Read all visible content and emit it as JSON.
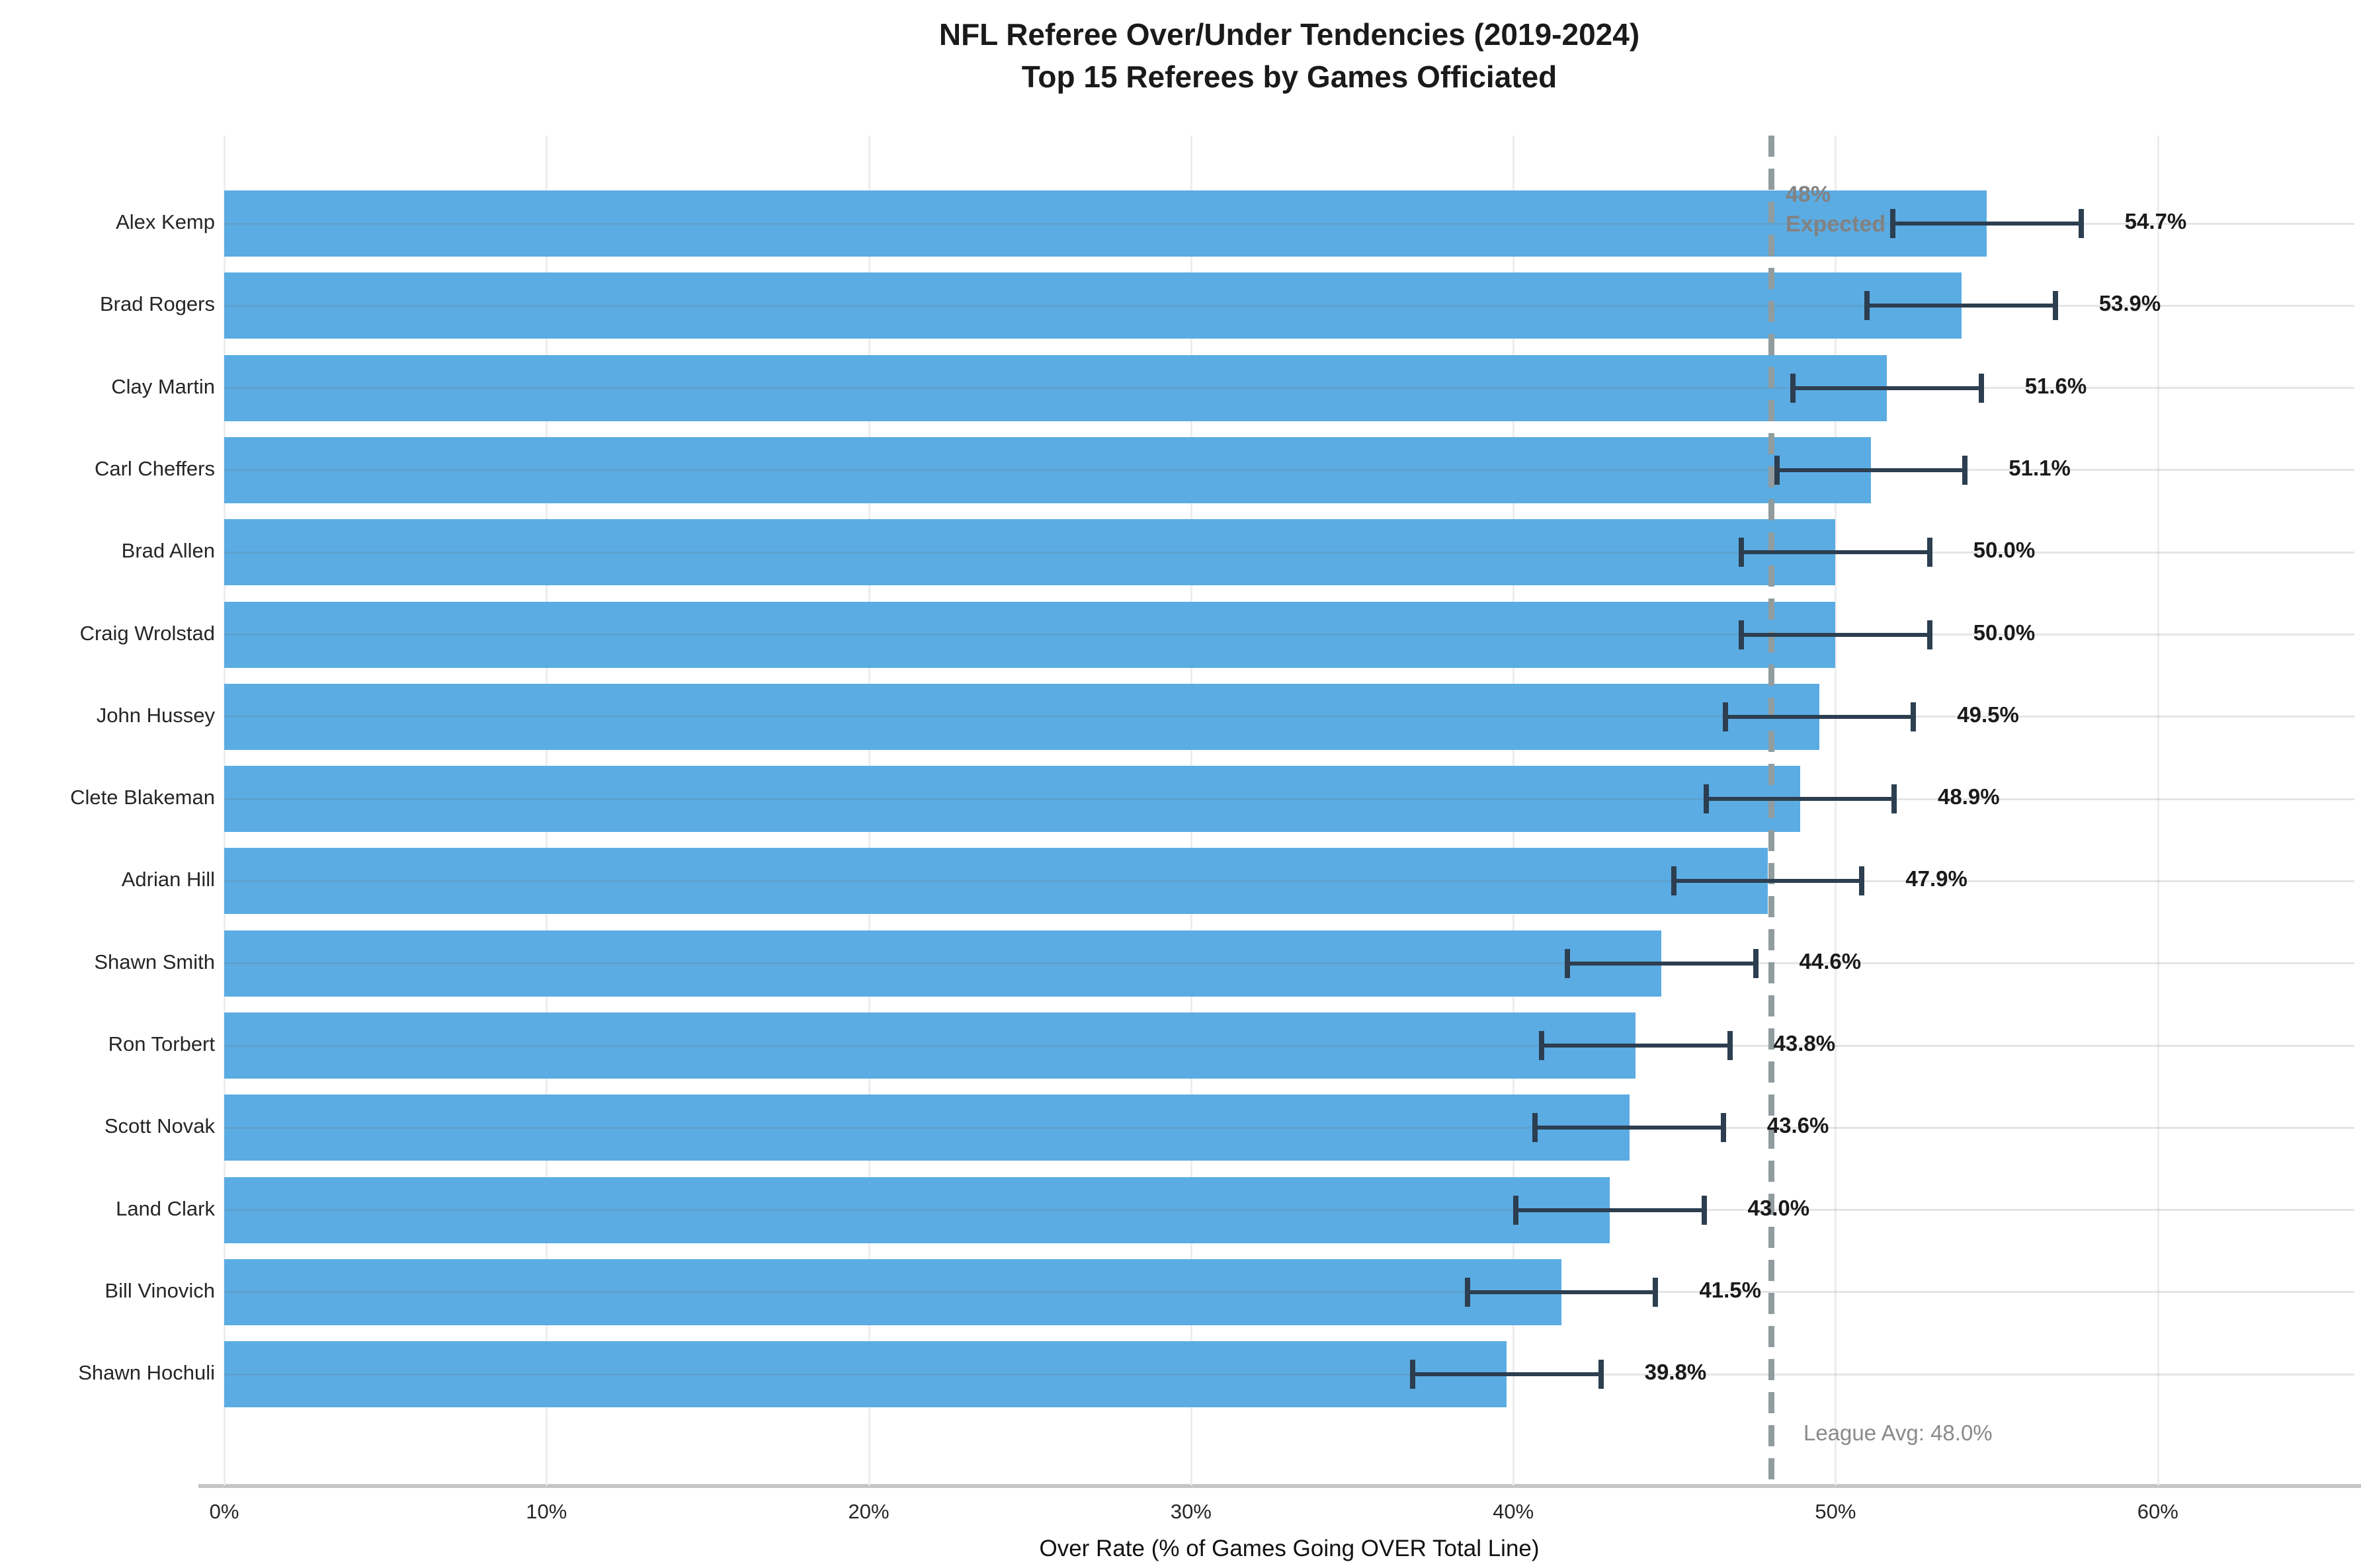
{
  "title": {
    "line1": "NFL Referee Over/Under Tendencies (2019-2024)",
    "line2": "Top 15 Referees by Games Officiated"
  },
  "chart_data": {
    "type": "bar",
    "orientation": "horizontal",
    "categories": [
      "Alex Kemp",
      "Brad Rogers",
      "Clay Martin",
      "Carl Cheffers",
      "Brad Allen",
      "Craig Wrolstad",
      "John Hussey",
      "Clete Blakeman",
      "Adrian Hill",
      "Shawn Smith",
      "Ron Torbert",
      "Scott Novak",
      "Land Clark",
      "Bill Vinovich",
      "Shawn Hochuli"
    ],
    "values": [
      54.7,
      53.9,
      51.6,
      51.1,
      50.0,
      50.0,
      49.5,
      48.9,
      47.9,
      44.6,
      43.8,
      43.6,
      43.0,
      41.5,
      39.8
    ],
    "value_labels": [
      "54.7%",
      "53.9%",
      "51.6%",
      "51.1%",
      "50.0%",
      "50.0%",
      "49.5%",
      "48.9%",
      "47.9%",
      "44.6%",
      "43.8%",
      "43.6%",
      "43.0%",
      "41.5%",
      "39.8%"
    ],
    "error_margin": 3.0,
    "xlabel": "Over Rate (% of Games Going OVER Total Line)",
    "x_ticks": [
      0,
      10,
      20,
      30,
      40,
      50,
      60
    ],
    "x_tick_labels": [
      "0%",
      "10%",
      "20%",
      "30%",
      "40%",
      "50%",
      "60%"
    ],
    "xlim": [
      0,
      66.1
    ],
    "grid": "horizontal line per category, faint vertical line per tick",
    "legend": "none",
    "reference_line": {
      "x": 48,
      "annotation_top_line1": "48%",
      "annotation_top_line2": "Expected",
      "annotation_bottom": "League Avg: 48.0%"
    },
    "colors": {
      "bar": "#5bace3",
      "error_bar": "#2c3e50",
      "reference_line": "#909c9e",
      "annotation_gray": "#8a8a8a",
      "grid": "#e0e0e0"
    }
  }
}
